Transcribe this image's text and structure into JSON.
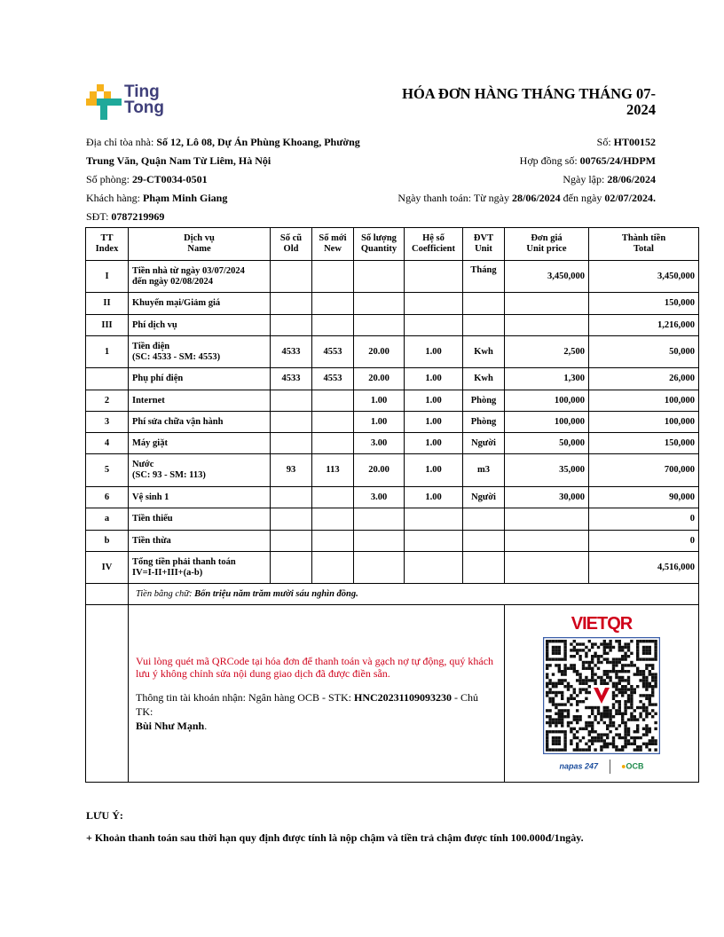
{
  "brand": {
    "logo_text_line1": "Ting",
    "logo_text_line2": "Tong"
  },
  "title": "HÓA ĐƠN HÀNG THÁNG THÁNG 07-2024",
  "info_left": {
    "address_label": "Địa chỉ tòa nhà: ",
    "address_value": "Số 12, Lô 08, Dự Án Phùng Khoang, Phường Trung Văn, Quận Nam Từ Liêm, Hà Nội",
    "room_label": "Số phòng: ",
    "room_value": "29-CT0034-0501",
    "customer_label": "Khách hàng: ",
    "customer_value": "Phạm Minh Giang",
    "phone_label": "SĐT: ",
    "phone_value": "0787219969"
  },
  "info_right": {
    "number_label": "Số: ",
    "number_value": "HT00152",
    "contract_label": "Hợp đồng số: ",
    "contract_value": "00765/24/HDPM",
    "created_label": "Ngày lập: ",
    "created_value": "28/06/2024",
    "pay_label": "Ngày thanh toán: Từ ngày ",
    "pay_from": "28/06/2024",
    "pay_mid": " đến ngày ",
    "pay_to": "02/07/2024",
    "pay_end": "."
  },
  "table": {
    "headers": [
      [
        "TT",
        "Index"
      ],
      [
        "Dịch vụ",
        "Name"
      ],
      [
        "Số cũ",
        "Old"
      ],
      [
        "Số mới",
        "New"
      ],
      [
        "Số lượng",
        "Quantity"
      ],
      [
        "Hệ số",
        "Coefficient"
      ],
      [
        "ĐVT",
        "Unit"
      ],
      [
        "Đơn giá",
        "Unit price"
      ],
      [
        "Thành tiền",
        "Total"
      ]
    ],
    "rows": [
      {
        "index": "I",
        "name": "Tiền nhà từ ngày 03/07/2024",
        "name2": "đến ngày 02/08/2024",
        "old": "",
        "new": "",
        "qty": "",
        "coef": "",
        "unit": "Tháng",
        "price": "3,450,000",
        "total": "3,450,000"
      },
      {
        "index": "II",
        "name": "Khuyến mại/Giảm giá",
        "name2": "",
        "old": "",
        "new": "",
        "qty": "",
        "coef": "",
        "unit": "",
        "price": "",
        "total": "150,000"
      },
      {
        "index": "III",
        "name": "Phí dịch vụ",
        "name2": "",
        "old": "",
        "new": "",
        "qty": "",
        "coef": "",
        "unit": "",
        "price": "",
        "total": "1,216,000"
      },
      {
        "index": "1",
        "name": "Tiền điện",
        "name2": "(SC: 4533 - SM: 4553)",
        "old": "4533",
        "new": "4553",
        "qty": "20.00",
        "coef": "1.00",
        "unit": "Kwh",
        "price": "2,500",
        "total": "50,000"
      },
      {
        "index": "",
        "name": "Phụ phí điện",
        "name2": "",
        "old": "4533",
        "new": "4553",
        "qty": "20.00",
        "coef": "1.00",
        "unit": "Kwh",
        "price": "1,300",
        "total": "26,000"
      },
      {
        "index": "2",
        "name": "Internet",
        "name2": "",
        "old": "",
        "new": "",
        "qty": "1.00",
        "coef": "1.00",
        "unit": "Phòng",
        "price": "100,000",
        "total": "100,000"
      },
      {
        "index": "3",
        "name": "Phí sửa chữa vận hành",
        "name2": "",
        "old": "",
        "new": "",
        "qty": "1.00",
        "coef": "1.00",
        "unit": "Phòng",
        "price": "100,000",
        "total": "100,000"
      },
      {
        "index": "4",
        "name": "Máy giặt",
        "name2": "",
        "old": "",
        "new": "",
        "qty": "3.00",
        "coef": "1.00",
        "unit": "Người",
        "price": "50,000",
        "total": "150,000"
      },
      {
        "index": "5",
        "name": "Nước",
        "name2": "(SC: 93 - SM: 113)",
        "old": "93",
        "new": "113",
        "qty": "20.00",
        "coef": "1.00",
        "unit": "m3",
        "price": "35,000",
        "total": "700,000"
      },
      {
        "index": "6",
        "name": "Vệ sinh 1",
        "name2": "",
        "old": "",
        "new": "",
        "qty": "3.00",
        "coef": "1.00",
        "unit": "Người",
        "price": "30,000",
        "total": "90,000"
      },
      {
        "index": "a",
        "name": "Tiền thiếu",
        "name2": "",
        "old": "",
        "new": "",
        "qty": "",
        "coef": "",
        "unit": "",
        "price": "",
        "total": "0"
      },
      {
        "index": "b",
        "name": "Tiền thừa",
        "name2": "",
        "old": "",
        "new": "",
        "qty": "",
        "coef": "",
        "unit": "",
        "price": "",
        "total": "0"
      },
      {
        "index": "IV",
        "name": "Tổng tiền phải thanh toán",
        "name2": "IV=I-II+III+(a-b)",
        "old": "",
        "new": "",
        "qty": "",
        "coef": "",
        "unit": "",
        "price": "",
        "total": "4,516,000"
      }
    ],
    "words_label": "Tiền bằng chữ: ",
    "words_value": "Bốn triệu năm trăm mười sáu nghìn đồng."
  },
  "payment": {
    "notice": "Vui lòng quét mã QRCode tại hóa đơn để thanh toán và gạch nợ tự động, quý khách lưu ý không chỉnh sửa nội dung giao dịch đã được điền sẵn.",
    "account_label": "Thông tin tài khoản nhận: Ngân hàng OCB - STK: ",
    "account_number": "HNC20231109093230",
    "owner_label": " - Chủ TK: ",
    "owner_name": "Bùi Như Mạnh",
    "owner_end": ".",
    "vietqr_logo": "VIETQR",
    "napas_logo": "napas 247",
    "bank_logo": "OCB",
    "colors": {
      "notice": "#d0021b",
      "vietqr": "#d0021b",
      "qr_border": "#3b5ea8"
    }
  },
  "notes": {
    "title": "LƯU Ý:",
    "items": [
      "+ Khoản thanh toán sau thời hạn quy định được tính là nộp chậm và tiền trả chậm được tính 100.000đ/1ngày."
    ]
  }
}
